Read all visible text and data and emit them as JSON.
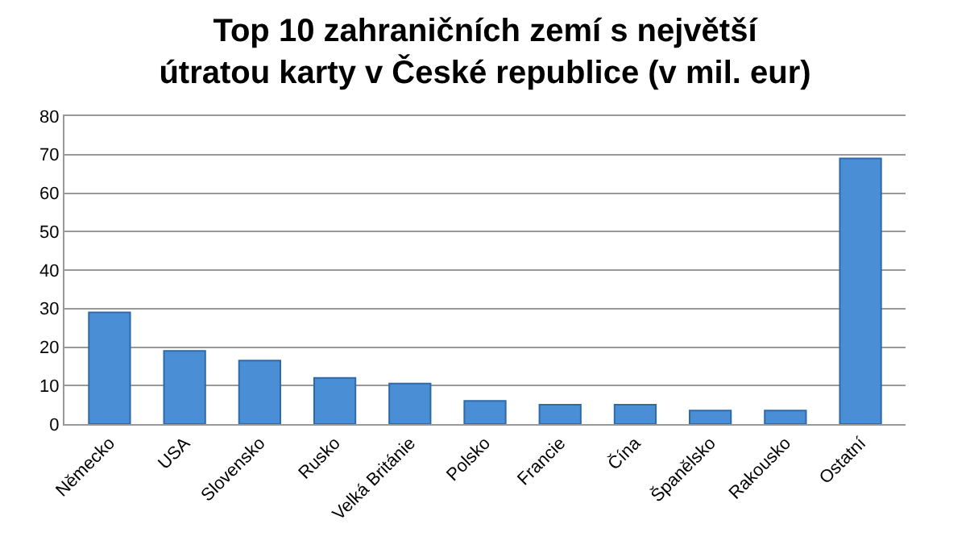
{
  "chart_data": {
    "type": "bar",
    "title": "Top 10 zahraničních zemí s největší\nútratou karty v České republice (v mil. eur)",
    "categories": [
      "Německo",
      "USA",
      "Slovensko",
      "Rusko",
      "Velká Británie",
      "Polsko",
      "Francie",
      "Čína",
      "Španělsko",
      "Rakousko",
      "Ostatní"
    ],
    "values": [
      29,
      19,
      16.5,
      12,
      10.5,
      6,
      5,
      5,
      3.5,
      3.5,
      69
    ],
    "color": "#4a8fd6",
    "ylim": [
      0,
      80
    ],
    "yticks": [
      0,
      10,
      20,
      30,
      40,
      50,
      60,
      70,
      80
    ],
    "grid": "y"
  }
}
